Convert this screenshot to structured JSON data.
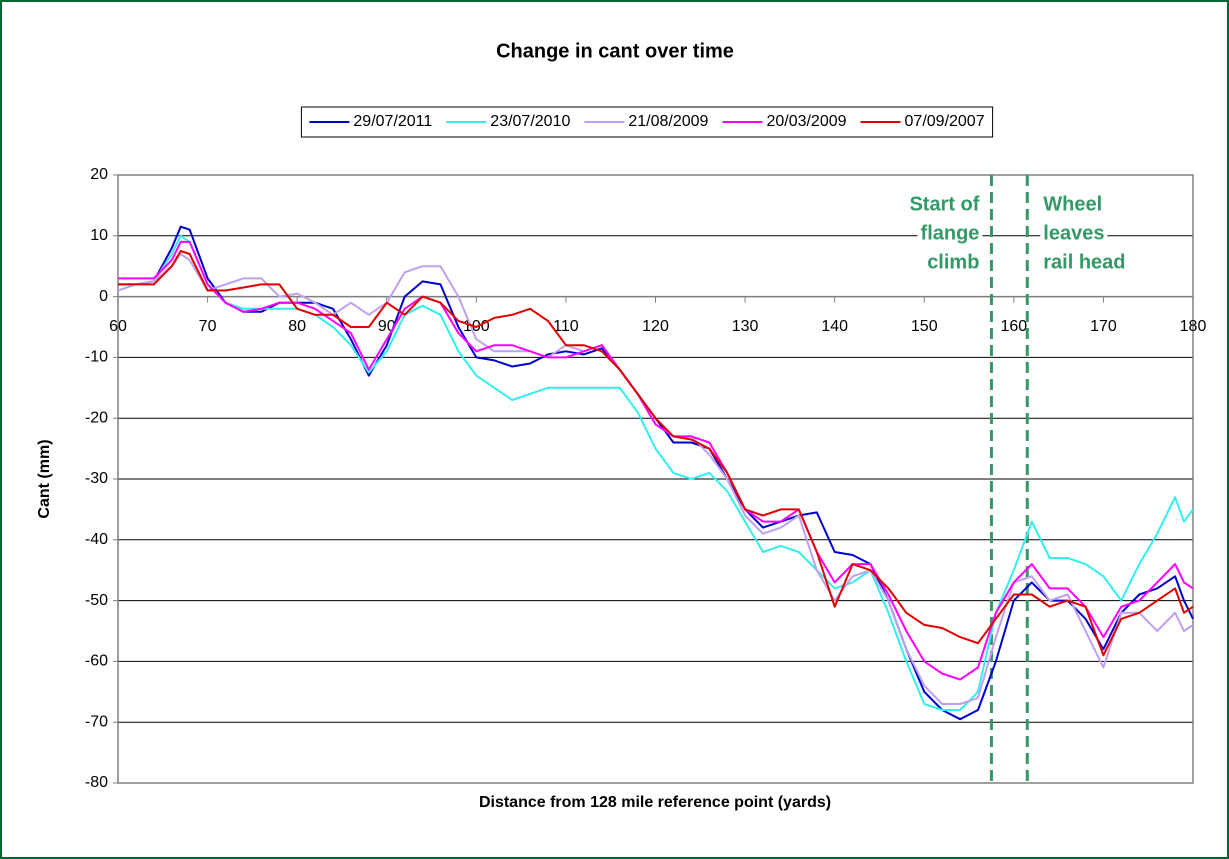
{
  "chart_data": {
    "type": "line",
    "title": "Change in cant over time",
    "xlabel": "Distance from 128 mile reference point (yards)",
    "ylabel": "Cant (mm)",
    "x": [
      60,
      62,
      64,
      66,
      67,
      68,
      70,
      72,
      74,
      76,
      78,
      80,
      82,
      84,
      86,
      88,
      90,
      92,
      94,
      96,
      98,
      100,
      102,
      104,
      106,
      108,
      110,
      112,
      114,
      116,
      118,
      120,
      122,
      124,
      126,
      128,
      130,
      132,
      134,
      136,
      138,
      140,
      142,
      144,
      146,
      148,
      150,
      152,
      154,
      156,
      158,
      160,
      162,
      164,
      166,
      168,
      170,
      172,
      174,
      176,
      178,
      179,
      180
    ],
    "series": [
      {
        "name": "29/07/2011",
        "color": "#0000cc",
        "values": [
          2,
          2,
          2.5,
          8,
          11.5,
          11,
          3,
          -1,
          -2.5,
          -2.5,
          -1,
          -1,
          -1,
          -2,
          -7,
          -13,
          -8,
          0,
          2.5,
          2,
          -5,
          -10,
          -10.5,
          -11.5,
          -11,
          -9.5,
          -9,
          -9.5,
          -8.5,
          -12,
          -16,
          -20,
          -24,
          -24,
          -25,
          -30,
          -35,
          -38,
          -37,
          -36,
          -35.5,
          -42,
          -42.5,
          -44,
          -50,
          -58,
          -65,
          -68,
          -69.5,
          -68,
          -60,
          -50,
          -47,
          -50,
          -50,
          -53,
          -58,
          -52,
          -49,
          -48,
          -46,
          -50,
          -53
        ]
      },
      {
        "name": "23/07/2010",
        "color": "#33eeee",
        "values": [
          2,
          2,
          2.5,
          7,
          10,
          9,
          2,
          -1,
          -2,
          -2,
          -2,
          -2,
          -3,
          -5,
          -8,
          -12.5,
          -9,
          -3,
          -1.5,
          -3,
          -9,
          -13,
          -15,
          -17,
          -16,
          -15,
          -15,
          -15,
          -15,
          -15,
          -19,
          -25,
          -29,
          -30,
          -29,
          -32,
          -37,
          -42,
          -41,
          -42,
          -45,
          -48,
          -47,
          -45,
          -52,
          -60,
          -67,
          -68,
          -68,
          -65,
          -52,
          -45,
          -37,
          -43,
          -43,
          -44,
          -46,
          -50,
          -44,
          -39,
          -33,
          -37,
          -35
        ]
      },
      {
        "name": "21/08/2009",
        "color": "#c0a0ee",
        "values": [
          1,
          2,
          2.5,
          5,
          7,
          6,
          1,
          2,
          3,
          3,
          0,
          0.5,
          -1,
          -3,
          -1,
          -3,
          -1,
          4,
          5,
          5,
          0,
          -7,
          -9,
          -9,
          -9,
          -10,
          -8,
          -9,
          -8,
          -12,
          -16,
          -21,
          -23,
          -23,
          -26,
          -30,
          -36,
          -39,
          -38,
          -36,
          -45,
          -50,
          -46,
          -45,
          -50,
          -58,
          -64,
          -67,
          -67,
          -66,
          -56,
          -47,
          -46,
          -50,
          -49,
          -55,
          -61,
          -52,
          -52,
          -55,
          -52,
          -55,
          -54
        ]
      },
      {
        "name": "20/03/2009",
        "color": "#ff00ff",
        "values": [
          3,
          3,
          3,
          6,
          9,
          9,
          2,
          -1,
          -2.5,
          -2,
          -1,
          -1,
          -2,
          -4,
          -6,
          -12,
          -7,
          -2,
          0,
          -1,
          -6,
          -9,
          -8,
          -8,
          -9,
          -10,
          -10,
          -9,
          -8,
          -12,
          -16,
          -21,
          -23,
          -23,
          -24,
          -29,
          -35,
          -37,
          -37,
          -35,
          -42,
          -47,
          -44,
          -44,
          -49,
          -55,
          -60,
          -62,
          -63,
          -61,
          -52,
          -47,
          -44,
          -48,
          -48,
          -51,
          -56,
          -51,
          -50,
          -47,
          -44,
          -47,
          -48
        ]
      },
      {
        "name": "07/09/2007",
        "color": "#e00000",
        "values": [
          2,
          2,
          2,
          5,
          7.5,
          7,
          1,
          1,
          1.5,
          2,
          2,
          -2,
          -3,
          -3,
          -5,
          -5,
          -1,
          -3,
          0,
          -1,
          -4,
          -5,
          -3.5,
          -3,
          -2,
          -4,
          -8,
          -8,
          -9,
          -12,
          -16,
          -20,
          -23,
          -23.5,
          -25,
          -29,
          -35,
          -36,
          -35,
          -35,
          -42,
          -51,
          -44,
          -45,
          -48,
          -52,
          -54,
          -54.5,
          -56,
          -57,
          -53,
          -49,
          -49,
          -51,
          -50,
          -51,
          -59,
          -53,
          -52,
          -50,
          -48,
          -52,
          -51
        ]
      }
    ],
    "xlim": [
      60,
      180
    ],
    "xticks": [
      60,
      70,
      80,
      90,
      100,
      110,
      120,
      130,
      140,
      150,
      160,
      170,
      180
    ],
    "ylim": [
      -80,
      20
    ],
    "yticks": [
      -80,
      -70,
      -60,
      -50,
      -40,
      -30,
      -20,
      -10,
      0,
      10,
      20
    ],
    "grid": true,
    "legend": "top",
    "vlines": [
      {
        "x": 157.5,
        "label": [
          "Start of",
          "flange",
          "climb"
        ],
        "color": "#339966"
      },
      {
        "x": 161.5,
        "label": [
          "Wheel",
          "leaves",
          "rail head"
        ],
        "color": "#339966"
      }
    ]
  }
}
